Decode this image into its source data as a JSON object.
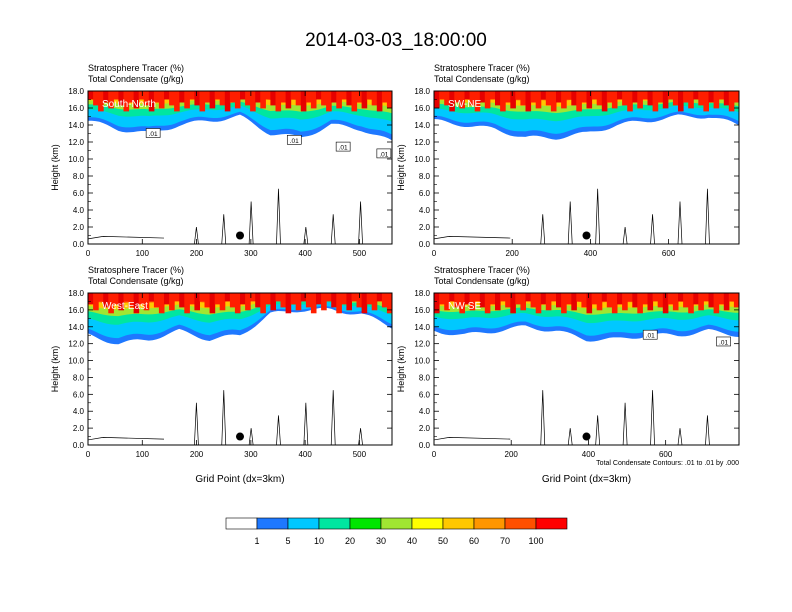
{
  "title": "2014-03-03_18:00:00",
  "shared": {
    "label_line1": "Stratosphere Tracer   (%)",
    "label_line2": "Total Condensate   (g/kg)",
    "ylabel": "Height (km)",
    "xlabel": "Grid Point (dx=3km)",
    "contour_note": "Total Condensate Contours: .01 to .01 by .000",
    "contour_label": ".01"
  },
  "colorbar": {
    "colors": [
      "#ffffff",
      "#1e78ff",
      "#00c8ff",
      "#00e6a0",
      "#00e600",
      "#a0e632",
      "#ffff00",
      "#ffc800",
      "#ff9600",
      "#ff5000",
      "#ff0000"
    ],
    "labels": [
      "1",
      "5",
      "10",
      "20",
      "30",
      "40",
      "50",
      "60",
      "70",
      "100"
    ]
  },
  "chart_data": [
    {
      "type": "heatmap",
      "name": "South-North",
      "xlim": [
        0,
        560
      ],
      "ylim": [
        0,
        18
      ],
      "xticks": [
        "0",
        "100",
        "200",
        "300",
        "400",
        "500"
      ],
      "xtick_values": [
        0,
        100,
        200,
        300,
        400,
        500
      ],
      "yticks": [
        "0.0",
        "2.0",
        "4.0",
        "6.0",
        "8.0",
        "10.0",
        "12.0",
        "14.0",
        "16.0",
        "18.0"
      ],
      "ytick_values": [
        0,
        2,
        4,
        6,
        8,
        10,
        12,
        14,
        16,
        18
      ],
      "tracer_layer_base_km": [
        14.5,
        13.5,
        13.0,
        14.0,
        14.5,
        15.0,
        13.0,
        12.5,
        14.0,
        13.5,
        12.0
      ],
      "marker_x": 280,
      "contour_labels_x": [
        120,
        380,
        470,
        545
      ]
    },
    {
      "type": "heatmap",
      "name": "SW-NE",
      "xlim": [
        0,
        780
      ],
      "ylim": [
        0,
        18
      ],
      "xticks": [
        "0",
        "200",
        "400",
        "600"
      ],
      "xtick_values": [
        0,
        200,
        400,
        600
      ],
      "yticks": [
        "0.0",
        "2.0",
        "4.0",
        "6.0",
        "8.0",
        "10.0",
        "12.0",
        "14.0",
        "16.0",
        "18.0"
      ],
      "ytick_values": [
        0,
        2,
        4,
        6,
        8,
        10,
        12,
        14,
        16,
        18
      ],
      "tracer_layer_base_km": [
        14.5,
        14.0,
        13.5,
        12.5,
        12.5,
        13.0,
        14.0,
        14.5,
        15.0,
        15.0,
        14.0
      ],
      "marker_x": 390,
      "contour_labels_x": []
    },
    {
      "type": "heatmap",
      "name": "West-East",
      "xlim": [
        0,
        560
      ],
      "ylim": [
        0,
        18
      ],
      "xticks": [
        "0",
        "100",
        "200",
        "300",
        "400",
        "500"
      ],
      "xtick_values": [
        0,
        100,
        200,
        300,
        400,
        500
      ],
      "yticks": [
        "0.0",
        "2.0",
        "4.0",
        "6.0",
        "8.0",
        "10.0",
        "12.0",
        "14.0",
        "16.0",
        "18.0"
      ],
      "ytick_values": [
        0,
        2,
        4,
        6,
        8,
        10,
        12,
        14,
        16,
        18
      ],
      "tracer_layer_base_km": [
        13.0,
        12.0,
        12.5,
        13.5,
        12.5,
        13.0,
        15.5,
        16.0,
        16.0,
        15.5,
        14.0
      ],
      "marker_x": 280,
      "contour_labels_x": []
    },
    {
      "type": "heatmap",
      "name": "NW-SE",
      "xlim": [
        0,
        790
      ],
      "ylim": [
        0,
        18
      ],
      "xticks": [
        "0",
        "200",
        "400",
        "600"
      ],
      "xtick_values": [
        0,
        200,
        400,
        600
      ],
      "yticks": [
        "0.0",
        "2.0",
        "4.0",
        "6.0",
        "8.0",
        "10.0",
        "12.0",
        "14.0",
        "16.0",
        "18.0"
      ],
      "ytick_values": [
        0,
        2,
        4,
        6,
        8,
        10,
        12,
        14,
        16,
        18
      ],
      "tracer_layer_base_km": [
        13.5,
        13.0,
        13.5,
        14.0,
        13.5,
        12.5,
        12.5,
        13.0,
        13.0,
        13.5,
        13.0
      ],
      "marker_x": 395,
      "contour_labels_x": [
        560,
        750
      ]
    }
  ]
}
